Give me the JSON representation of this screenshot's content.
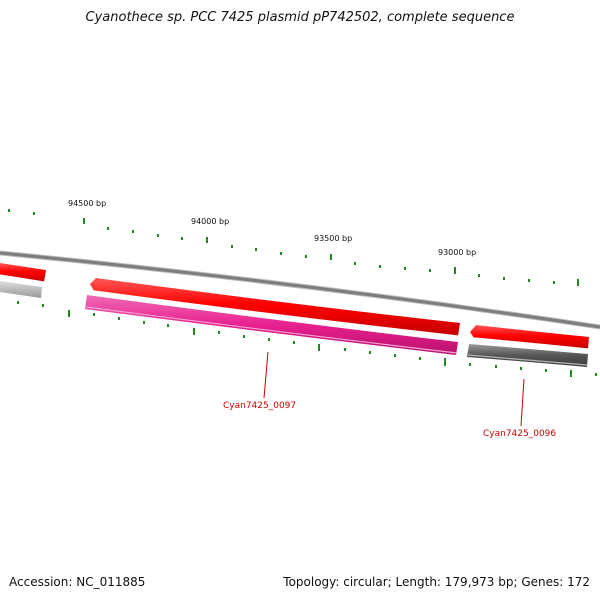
{
  "title": "Cyanothece sp. PCC 7425 plasmid pP742502, complete sequence",
  "scale_labels": [
    "94500 bp",
    "94000 bp",
    "93500 bp",
    "93000 bp"
  ],
  "genes": [
    {
      "label": "Cyan7425_0097",
      "color": "#e8208f"
    },
    {
      "label": "Cyan7425_0096",
      "color": "#555555"
    }
  ],
  "colors": {
    "backbone": "#808080",
    "forward_gene": "#ff0000",
    "reverse_gene": "#e8208f",
    "grey_gene": "#555555",
    "light_grey_gene": "#bbbbbb",
    "tick": "#228822",
    "label": "#cc0000"
  },
  "footer": {
    "accession": "Accession: NC_011885",
    "summary": "Topology: circular; Length: 179,973 bp; Genes: 172"
  }
}
